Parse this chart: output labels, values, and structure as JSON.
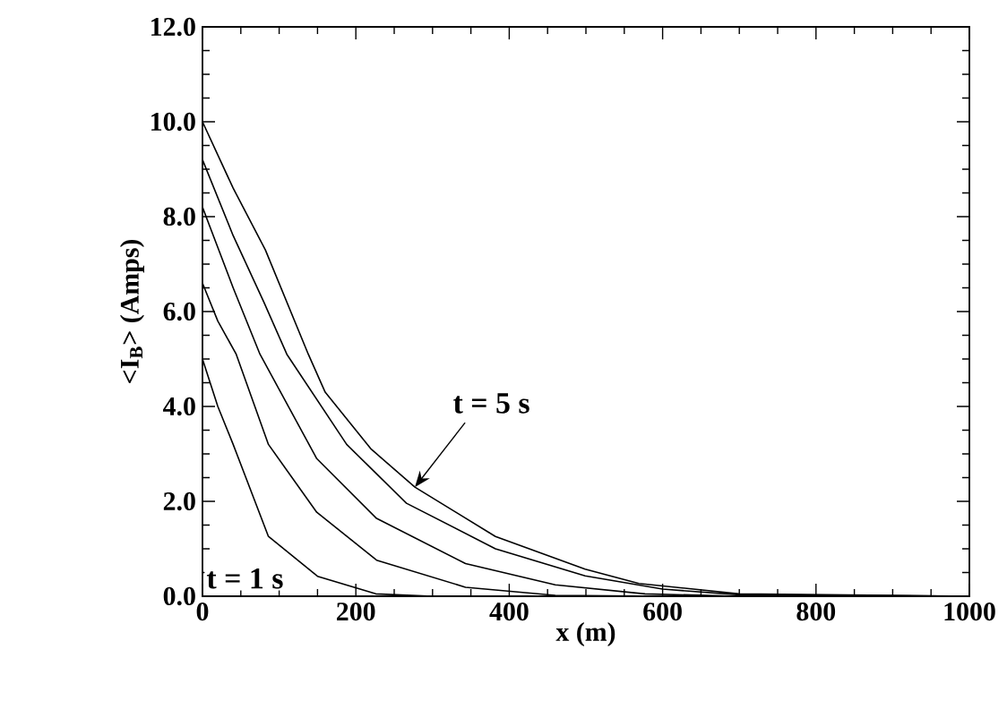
{
  "chart_data": {
    "type": "line",
    "xlabel": "x (m)",
    "ylabel": "<I$_{B}$> (Amps)",
    "x": [
      0,
      20,
      40,
      82,
      138,
      160,
      220,
      277,
      382,
      499,
      569,
      700,
      1000
    ],
    "series": [
      {
        "color": "#000000",
        "x": [
          0,
          20,
          40,
          86,
          150,
          226,
          300,
          1000
        ],
        "values": [
          5.0,
          4.0,
          3.2,
          1.26,
          0.42,
          0.05,
          0,
          0
        ]
      },
      {
        "color": "#000000",
        "x": [
          0,
          20,
          44,
          86,
          149,
          227,
          343,
          460,
          600,
          1000
        ],
        "values": [
          6.6,
          5.8,
          5.1,
          3.2,
          1.77,
          0.76,
          0.19,
          0.02,
          0,
          0
        ]
      },
      {
        "color": "#000000",
        "x": [
          0,
          40,
          75,
          149,
          227,
          343,
          460,
          577,
          700,
          1000
        ],
        "values": [
          8.2,
          6.5,
          5.1,
          2.9,
          1.64,
          0.69,
          0.24,
          0.05,
          0,
          0
        ]
      },
      {
        "color": "#000000",
        "x": [
          0,
          40,
          80,
          110,
          188,
          266,
          382,
          499,
          600,
          700,
          1000
        ],
        "values": [
          9.2,
          7.6,
          6.2,
          5.1,
          3.2,
          1.96,
          1.0,
          0.43,
          0.15,
          0.03,
          0
        ]
      },
      {
        "color": "#000000",
        "values": [
          10.0,
          9.3,
          8.6,
          7.3,
          5.1,
          4.3,
          3.1,
          2.3,
          1.26,
          0.57,
          0.27,
          0.05,
          0
        ]
      }
    ],
    "xlim": [
      0,
      1000
    ],
    "ylim": [
      0,
      12
    ],
    "xticks": [
      0,
      200,
      400,
      600,
      800,
      1000
    ],
    "yticks": [
      {
        "value": 0,
        "label": "0.0"
      },
      {
        "value": 2,
        "label": "2.0"
      },
      {
        "value": 4,
        "label": "4.0"
      },
      {
        "value": 6,
        "label": "6.0"
      },
      {
        "value": 8,
        "label": "8.0"
      },
      {
        "value": 10,
        "label": "10.0"
      },
      {
        "value": 12,
        "label": "12.0"
      }
    ],
    "annotations": [
      {
        "text": "t = 5 s",
        "x": 277,
        "y": 2.3
      },
      "t = 1 s"
    ],
    "grid": false,
    "legend": false,
    "marker": "none",
    "line_style": "solid"
  }
}
